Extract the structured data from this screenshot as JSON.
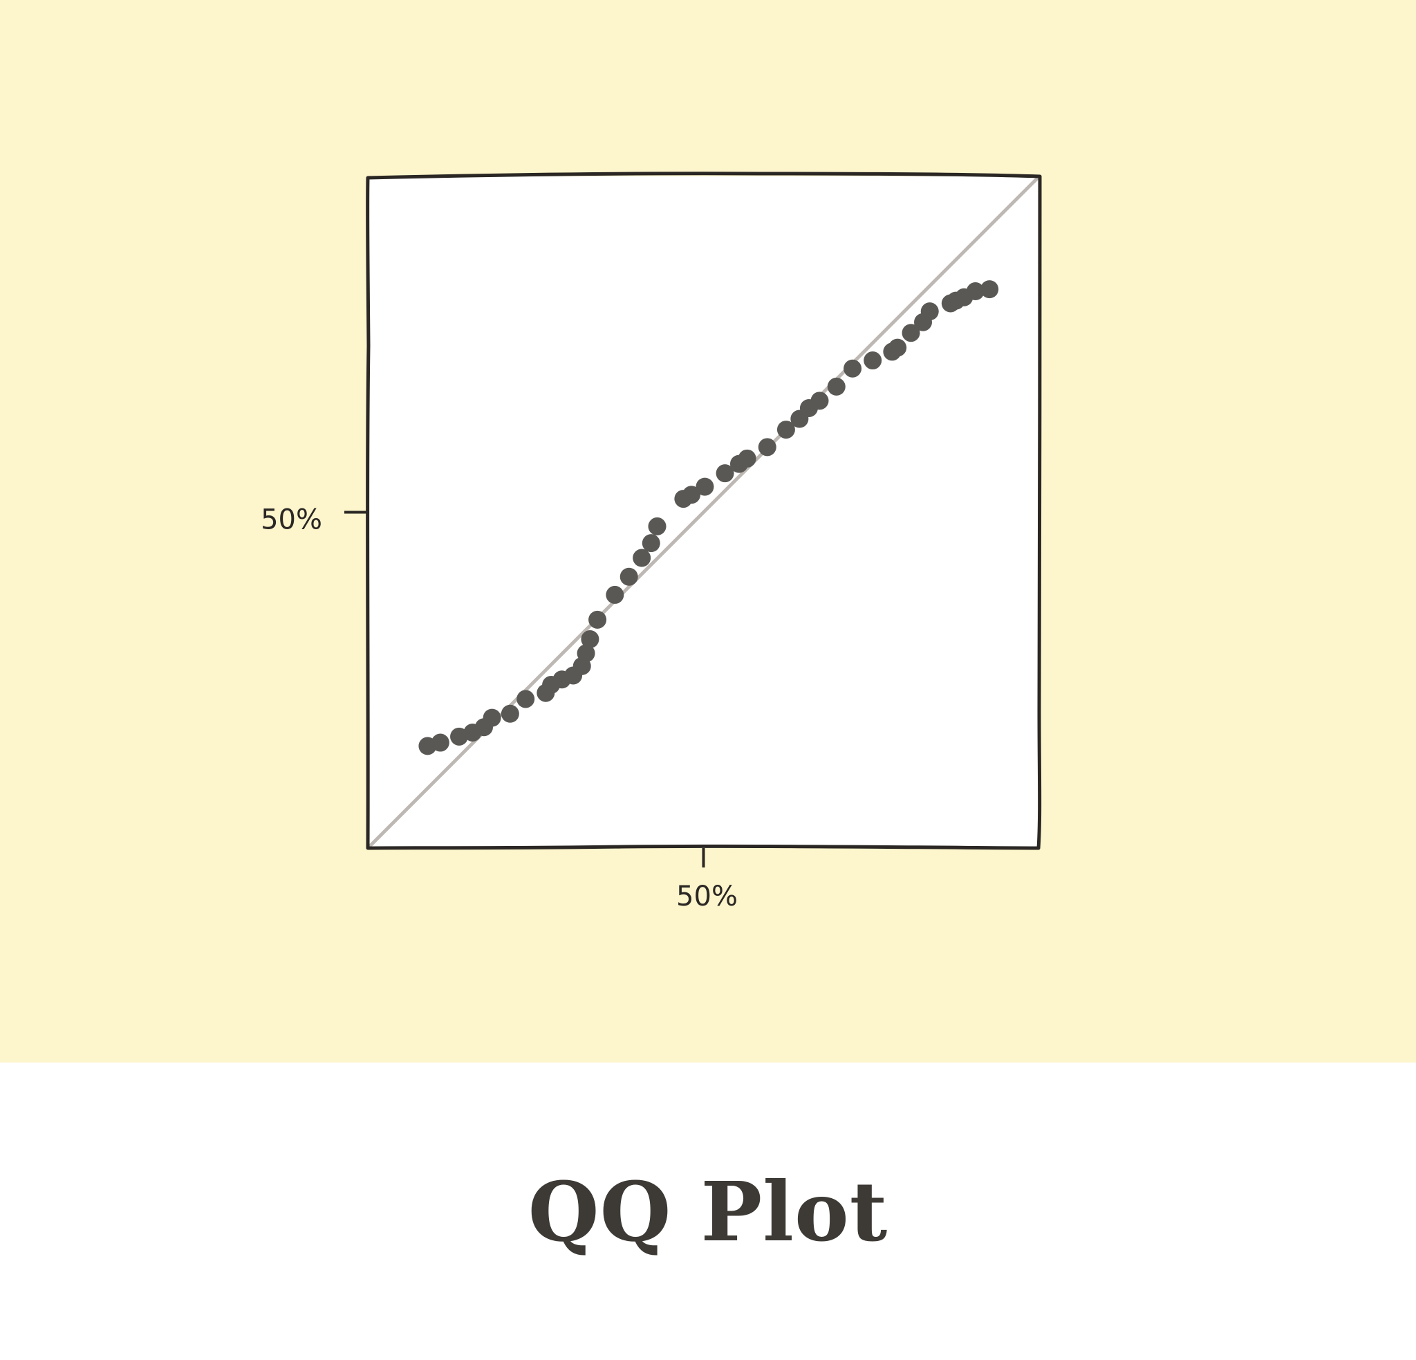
{
  "caption": {
    "title": "QQ Plot"
  },
  "colors": {
    "panel_background": "#fdf5cc",
    "plot_background": "#ffffff",
    "frame": "#2a2724",
    "points": "#5a5855",
    "reference_line": "#bdb8b3",
    "caption_text": "#3d3a36"
  },
  "chart_data": {
    "type": "scatter",
    "title": "",
    "xlabel": "",
    "ylabel": "",
    "xlim": [
      0,
      100
    ],
    "ylim": [
      0,
      100
    ],
    "grid": false,
    "x_ticks": [
      {
        "value": 50,
        "label": "50%"
      }
    ],
    "y_ticks": [
      {
        "value": 50,
        "label": "50%"
      }
    ],
    "reference_line": {
      "from": [
        0,
        0
      ],
      "to": [
        100,
        100
      ]
    },
    "series": [
      {
        "points": [
          [
            8.9,
            15.2
          ],
          [
            10.8,
            15.7
          ],
          [
            13.6,
            16.6
          ],
          [
            15.6,
            17.2
          ],
          [
            17.3,
            18.0
          ],
          [
            18.5,
            19.4
          ],
          [
            21.2,
            20.0
          ],
          [
            23.5,
            22.2
          ],
          [
            26.5,
            23.1
          ],
          [
            27.3,
            24.3
          ],
          [
            28.9,
            25.1
          ],
          [
            30.6,
            25.7
          ],
          [
            31.9,
            27.1
          ],
          [
            32.5,
            29.0
          ],
          [
            33.1,
            31.1
          ],
          [
            34.2,
            34.0
          ],
          [
            36.8,
            37.7
          ],
          [
            38.9,
            40.4
          ],
          [
            40.8,
            43.2
          ],
          [
            42.2,
            45.4
          ],
          [
            43.1,
            47.9
          ],
          [
            47.0,
            52.0
          ],
          [
            48.2,
            52.6
          ],
          [
            50.2,
            53.8
          ],
          [
            53.2,
            55.8
          ],
          [
            55.3,
            57.2
          ],
          [
            56.5,
            58.0
          ],
          [
            59.5,
            59.7
          ],
          [
            62.3,
            62.3
          ],
          [
            64.3,
            63.9
          ],
          [
            65.7,
            65.5
          ],
          [
            67.3,
            66.6
          ],
          [
            69.8,
            68.7
          ],
          [
            72.2,
            71.4
          ],
          [
            75.2,
            72.6
          ],
          [
            78.1,
            73.9
          ],
          [
            78.9,
            74.5
          ],
          [
            80.9,
            76.7
          ],
          [
            82.7,
            78.3
          ],
          [
            83.7,
            79.9
          ],
          [
            86.8,
            81.1
          ],
          [
            87.6,
            81.5
          ],
          [
            88.8,
            82.0
          ],
          [
            90.5,
            82.9
          ],
          [
            92.6,
            83.2
          ]
        ]
      }
    ]
  }
}
